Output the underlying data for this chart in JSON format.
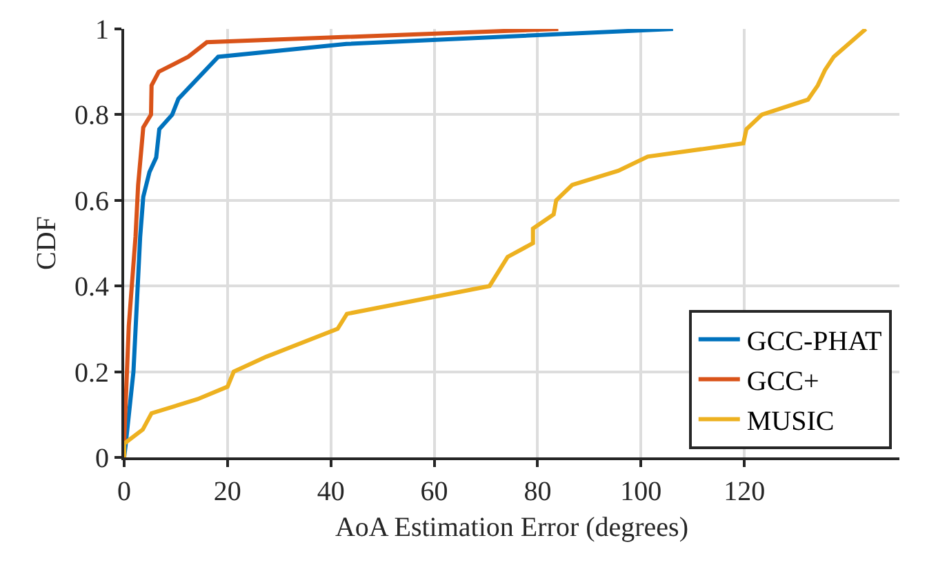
{
  "chart_data": {
    "type": "line",
    "xlabel": "AoA Estimation Error (degrees)",
    "ylabel": "CDF",
    "xlim": [
      0,
      150
    ],
    "xticks": [
      0,
      20,
      40,
      60,
      80,
      100,
      120
    ],
    "ylim": [
      0,
      1
    ],
    "yticks": [
      0,
      0.2,
      0.4,
      0.6,
      0.8,
      1
    ],
    "grid": true,
    "legend": "bottom right",
    "marker": "none",
    "line_style": "solid",
    "series": [
      {
        "name": "GCC-PHAT",
        "color": "#0072bd",
        "x": [
          0,
          0.3,
          1.8,
          3.1,
          3.7,
          4.9,
          6.2,
          6.8,
          9.3,
          10.5,
          18.2,
          43,
          106.2
        ],
        "values": [
          0,
          0.03,
          0.2,
          0.515,
          0.608,
          0.666,
          0.7,
          0.766,
          0.8,
          0.837,
          0.935,
          0.965,
          1
        ]
      },
      {
        "name": "GCC+",
        "color": "#d95319",
        "x": [
          0,
          0,
          0.9,
          2.2,
          2.7,
          3.7,
          5.2,
          5.3,
          6.7,
          12.4,
          16,
          84
        ],
        "values": [
          0,
          0.037,
          0.307,
          0.515,
          0.635,
          0.77,
          0.8,
          0.868,
          0.9,
          0.935,
          0.969,
          1
        ]
      },
      {
        "name": "MUSIC",
        "color": "#edb120",
        "x": [
          0,
          0,
          3.6,
          5.3,
          14.2,
          20,
          21.2,
          27.5,
          41.3,
          43.1,
          70.7,
          74.2,
          79.1,
          79.1,
          83.1,
          83.6,
          86.7,
          95.6,
          101.3,
          119.8,
          120.4,
          123.4,
          132.3,
          134.2,
          135.6,
          137.3,
          143.5
        ],
        "values": [
          0,
          0.032,
          0.065,
          0.103,
          0.136,
          0.165,
          0.2,
          0.235,
          0.3,
          0.335,
          0.4,
          0.468,
          0.5,
          0.534,
          0.567,
          0.6,
          0.636,
          0.669,
          0.702,
          0.733,
          0.766,
          0.8,
          0.835,
          0.868,
          0.904,
          0.935,
          1
        ]
      }
    ]
  }
}
